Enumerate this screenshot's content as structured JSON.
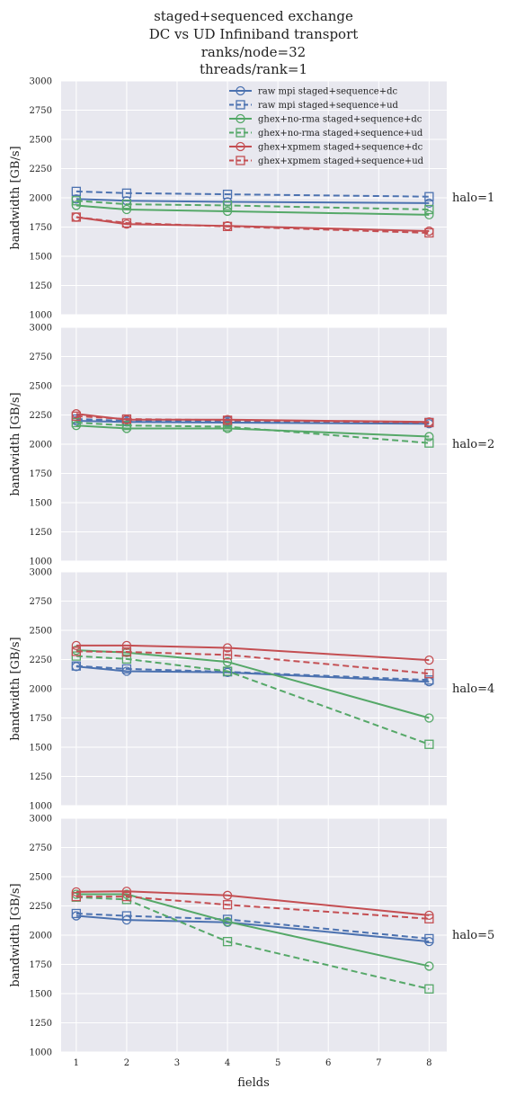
{
  "figure": {
    "title_lines": [
      "staged+sequenced exchange",
      "DC vs UD Infiniband transport",
      "ranks/node=32",
      "threads/rank=1"
    ]
  },
  "colors": {
    "panel_background": "#e8e8ef",
    "grid": "#ffffff",
    "raw_mpi": "#4c72b0",
    "ghex_no_rma": "#55a868",
    "ghex_xpmem": "#c44e52"
  },
  "chart_data": {
    "type": "line",
    "x": [
      1,
      2,
      4,
      8
    ],
    "xlabel": "fields",
    "ylabel": "bandwidth [GB/s]",
    "xlim": [
      0.7,
      8.35
    ],
    "ylim": [
      1000,
      3000
    ],
    "xticks": [
      "1",
      "2",
      "3",
      "4",
      "5",
      "6",
      "7",
      "8"
    ],
    "yticks": [
      "1000",
      "1250",
      "1500",
      "1750",
      "2000",
      "2250",
      "2500",
      "2750",
      "3000"
    ],
    "grid": true,
    "legend_location": "upper right (top panel)",
    "series_styles": [
      {
        "name": "raw mpi staged+sequence+dc",
        "color": "#4c72b0",
        "dash": "solid",
        "marker": "circle"
      },
      {
        "name": "raw mpi staged+sequence+ud",
        "color": "#4c72b0",
        "dash": "dashed",
        "marker": "square"
      },
      {
        "name": "ghex+no-rma staged+sequence+dc",
        "color": "#55a868",
        "dash": "solid",
        "marker": "circle"
      },
      {
        "name": "ghex+no-rma staged+sequence+ud",
        "color": "#55a868",
        "dash": "dashed",
        "marker": "square"
      },
      {
        "name": "ghex+xpmem staged+sequence+dc",
        "color": "#c44e52",
        "dash": "solid",
        "marker": "circle"
      },
      {
        "name": "ghex+xpmem staged+sequence+ud",
        "color": "#c44e52",
        "dash": "dashed",
        "marker": "square"
      }
    ],
    "panels": [
      {
        "label": "halo=1",
        "series": [
          {
            "values": [
              1990,
              1975,
              1965,
              1955
            ]
          },
          {
            "values": [
              2055,
              2040,
              2030,
              2010
            ]
          },
          {
            "values": [
              1935,
              1900,
              1885,
              1855
            ]
          },
          {
            "values": [
              1975,
              1945,
              1935,
              1900
            ]
          },
          {
            "values": [
              1835,
              1775,
              1760,
              1715
            ]
          },
          {
            "values": [
              1835,
              1785,
              1755,
              1700
            ]
          }
        ]
      },
      {
        "label": "halo=2",
        "series": [
          {
            "values": [
              2200,
              2190,
              2185,
              2175
            ]
          },
          {
            "values": [
              2215,
              2200,
              2195,
              2185
            ]
          },
          {
            "values": [
              2160,
              2135,
              2135,
              2065
            ]
          },
          {
            "values": [
              2185,
              2160,
              2150,
              2010
            ]
          },
          {
            "values": [
              2260,
              2210,
              2210,
              2190
            ]
          },
          {
            "values": [
              2240,
              2215,
              2205,
              2185
            ]
          }
        ]
      },
      {
        "label": "halo=4",
        "series": [
          {
            "values": [
              2190,
              2150,
              2140,
              2060
            ]
          },
          {
            "values": [
              2195,
              2170,
              2145,
              2075
            ]
          },
          {
            "values": [
              2330,
              2310,
              2230,
              1750
            ]
          },
          {
            "values": [
              2280,
              2255,
              2150,
              1525
            ]
          },
          {
            "values": [
              2370,
              2370,
              2350,
              2245
            ]
          },
          {
            "values": [
              2320,
              2315,
              2290,
              2130
            ]
          }
        ]
      },
      {
        "label": "halo=5",
        "series": [
          {
            "values": [
              2165,
              2130,
              2110,
              1945
            ]
          },
          {
            "values": [
              2185,
              2165,
              2135,
              1970
            ]
          },
          {
            "values": [
              2350,
              2350,
              2115,
              1735
            ]
          },
          {
            "values": [
              2325,
              2305,
              1945,
              1540
            ]
          },
          {
            "values": [
              2370,
              2375,
              2340,
              2170
            ]
          },
          {
            "values": [
              2330,
              2330,
              2260,
              2140
            ]
          }
        ]
      }
    ]
  }
}
